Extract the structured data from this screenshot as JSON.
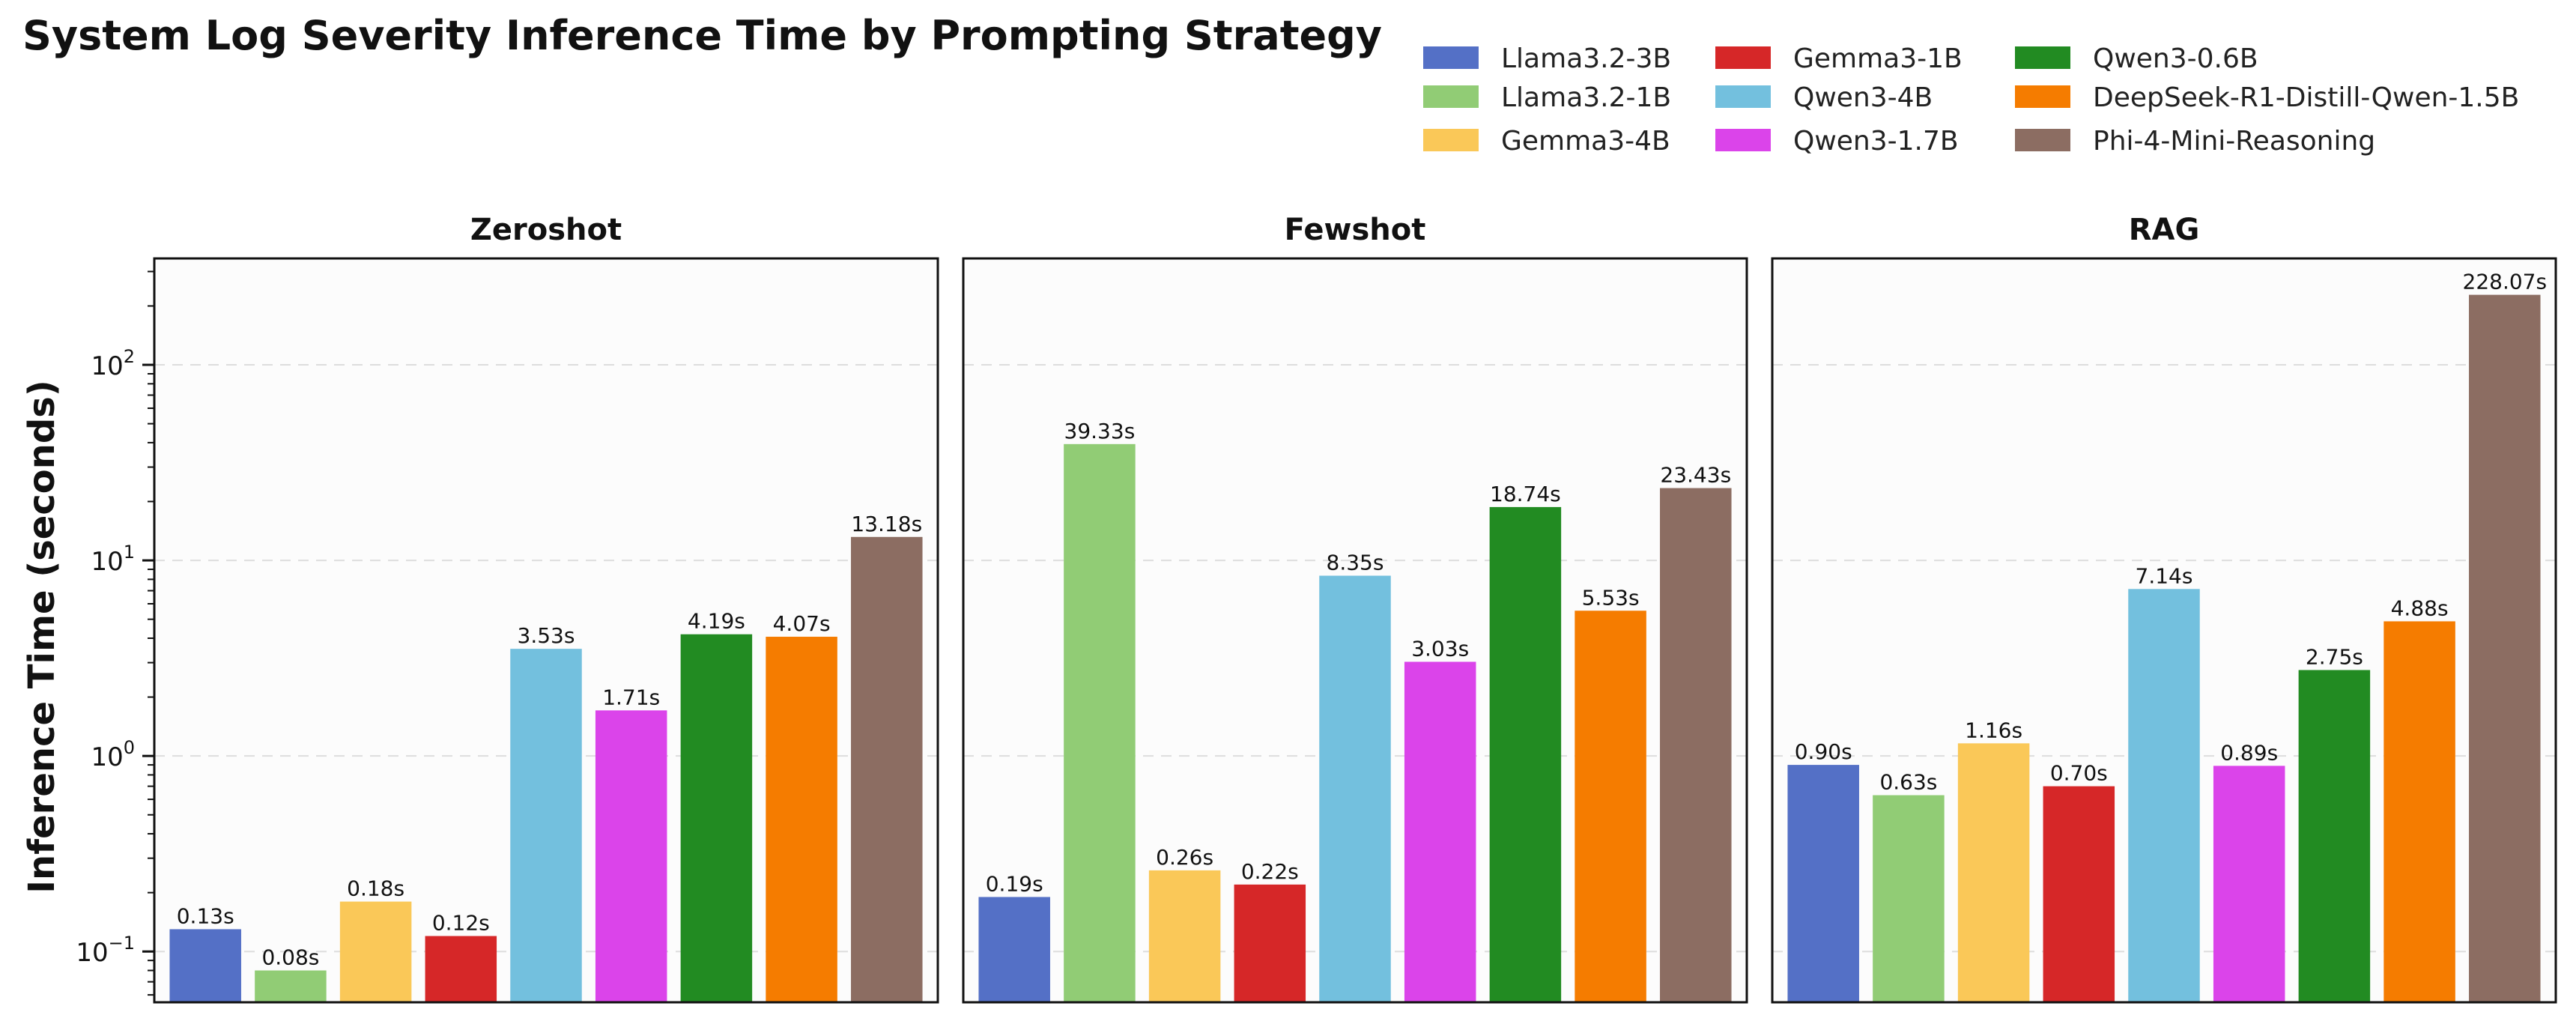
{
  "chart_data": {
    "type": "bar",
    "title": "System Log Severity Inference Time by Prompting Strategy",
    "ylabel": "Inference Time (seconds)",
    "yscale": "log",
    "ylim": [
      0.055,
      350
    ],
    "yticks": [
      0.1,
      1,
      10,
      100
    ],
    "ytick_labels": [
      {
        "base": "10",
        "exp": "−1"
      },
      {
        "base": "10",
        "exp": "0"
      },
      {
        "base": "10",
        "exp": "1"
      },
      {
        "base": "10",
        "exp": "2"
      }
    ],
    "grid": "horizontal dashed",
    "legend_position": "top-right",
    "value_suffix": "s",
    "models": [
      {
        "name": "Llama3.2-3B",
        "color": "#5470C6"
      },
      {
        "name": "Llama3.2-1B",
        "color": "#91CC75"
      },
      {
        "name": "Gemma3-4B",
        "color": "#FAC858"
      },
      {
        "name": "Gemma3-1B",
        "color": "#D62728"
      },
      {
        "name": "Qwen3-4B",
        "color": "#73C0DE"
      },
      {
        "name": "Qwen3-1.7B",
        "color": "#DB44EA"
      },
      {
        "name": "Qwen3-0.6B",
        "color": "#228B22"
      },
      {
        "name": "DeepSeek-R1-Distill-Qwen-1.5B",
        "color": "#F57C00"
      },
      {
        "name": "Phi-4-Mini-Reasoning",
        "color": "#8C6D62"
      }
    ],
    "panels": [
      {
        "title": "Zeroshot",
        "values": [
          0.13,
          0.08,
          0.18,
          0.12,
          3.53,
          1.71,
          4.19,
          4.07,
          13.18
        ]
      },
      {
        "title": "Fewshot",
        "values": [
          0.19,
          39.33,
          0.26,
          0.22,
          8.35,
          3.03,
          18.74,
          5.53,
          23.43
        ]
      },
      {
        "title": "RAG",
        "values": [
          0.9,
          0.63,
          1.16,
          0.7,
          7.14,
          0.89,
          2.75,
          4.88,
          228.07
        ]
      }
    ]
  }
}
